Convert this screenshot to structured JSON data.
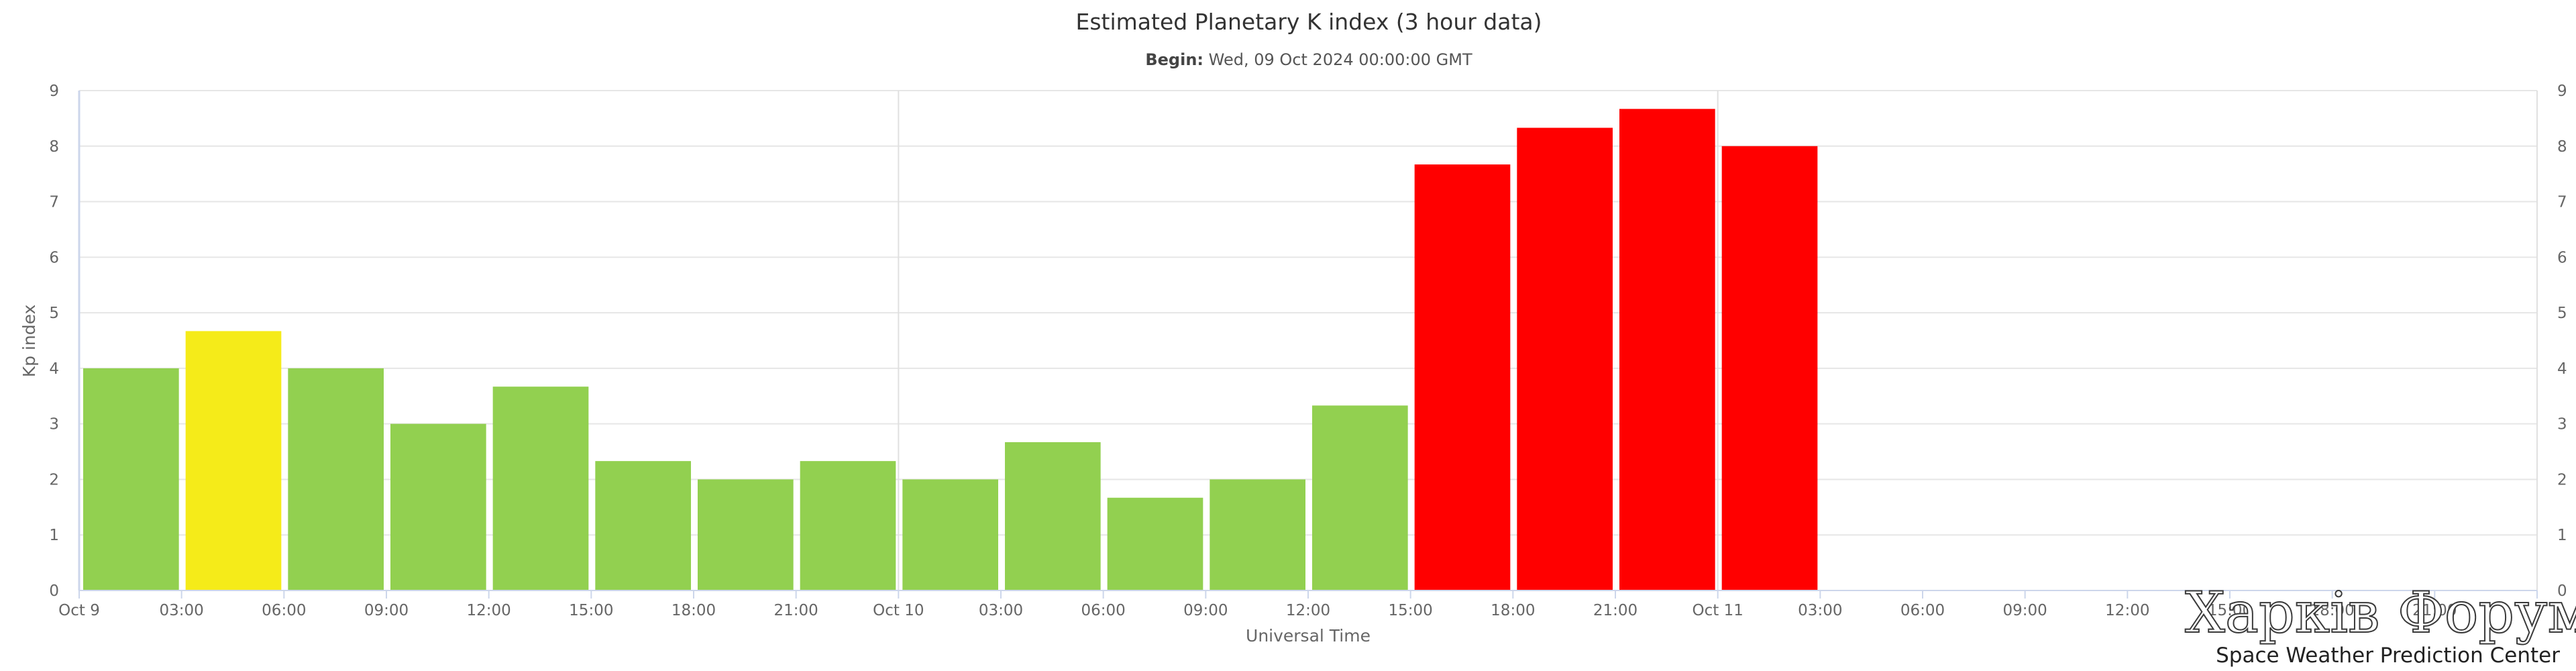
{
  "chart_data": {
    "type": "bar",
    "title": "Estimated Planetary K index (3 hour data)",
    "subtitle_label": "Begin:",
    "subtitle_value": " Wed, 09 Oct 2024 00:00:00 GMT",
    "xlabel": "Universal Time",
    "ylabel": "Kp index",
    "ylim": [
      0,
      9
    ],
    "y_ticks": [
      "0",
      "1",
      "2",
      "3",
      "4",
      "5",
      "6",
      "7",
      "8",
      "9"
    ],
    "x_tick_labels": [
      "Oct 9",
      "03:00",
      "06:00",
      "09:00",
      "12:00",
      "15:00",
      "18:00",
      "21:00",
      "Oct 10",
      "03:00",
      "06:00",
      "09:00",
      "12:00",
      "15:00",
      "18:00",
      "21:00",
      "Oct 11",
      "03:00",
      "06:00",
      "09:00",
      "12:00",
      "15:00",
      "18:00",
      "21:00"
    ],
    "x_range_hours": [
      0,
      72
    ],
    "bars": [
      {
        "start_hour": 0,
        "value": 4.0,
        "color": "#92d050"
      },
      {
        "start_hour": 3,
        "value": 4.67,
        "color": "#f5eb19"
      },
      {
        "start_hour": 6,
        "value": 4.0,
        "color": "#92d050"
      },
      {
        "start_hour": 9,
        "value": 3.0,
        "color": "#92d050"
      },
      {
        "start_hour": 12,
        "value": 3.67,
        "color": "#92d050"
      },
      {
        "start_hour": 15,
        "value": 2.33,
        "color": "#92d050"
      },
      {
        "start_hour": 18,
        "value": 2.0,
        "color": "#92d050"
      },
      {
        "start_hour": 21,
        "value": 2.33,
        "color": "#92d050"
      },
      {
        "start_hour": 24,
        "value": 2.0,
        "color": "#92d050"
      },
      {
        "start_hour": 27,
        "value": 2.67,
        "color": "#92d050"
      },
      {
        "start_hour": 30,
        "value": 1.67,
        "color": "#92d050"
      },
      {
        "start_hour": 33,
        "value": 2.0,
        "color": "#92d050"
      },
      {
        "start_hour": 36,
        "value": 3.33,
        "color": "#92d050"
      },
      {
        "start_hour": 39,
        "value": 7.67,
        "color": "#ff0000"
      },
      {
        "start_hour": 42,
        "value": 8.33,
        "color": "#ff0000"
      },
      {
        "start_hour": 45,
        "value": 8.67,
        "color": "#ff0000"
      },
      {
        "start_hour": 48,
        "value": 8.0,
        "color": "#ff0000"
      }
    ],
    "grid": true,
    "legend": "none",
    "credit": "Space Weather Prediction Center",
    "watermark": "Харків Форум"
  },
  "colors": {
    "grid": "#e6e6e6",
    "day_line": "#e0e0e0",
    "axis": "#ccd6eb",
    "text": "#666666",
    "title": "#333333"
  }
}
